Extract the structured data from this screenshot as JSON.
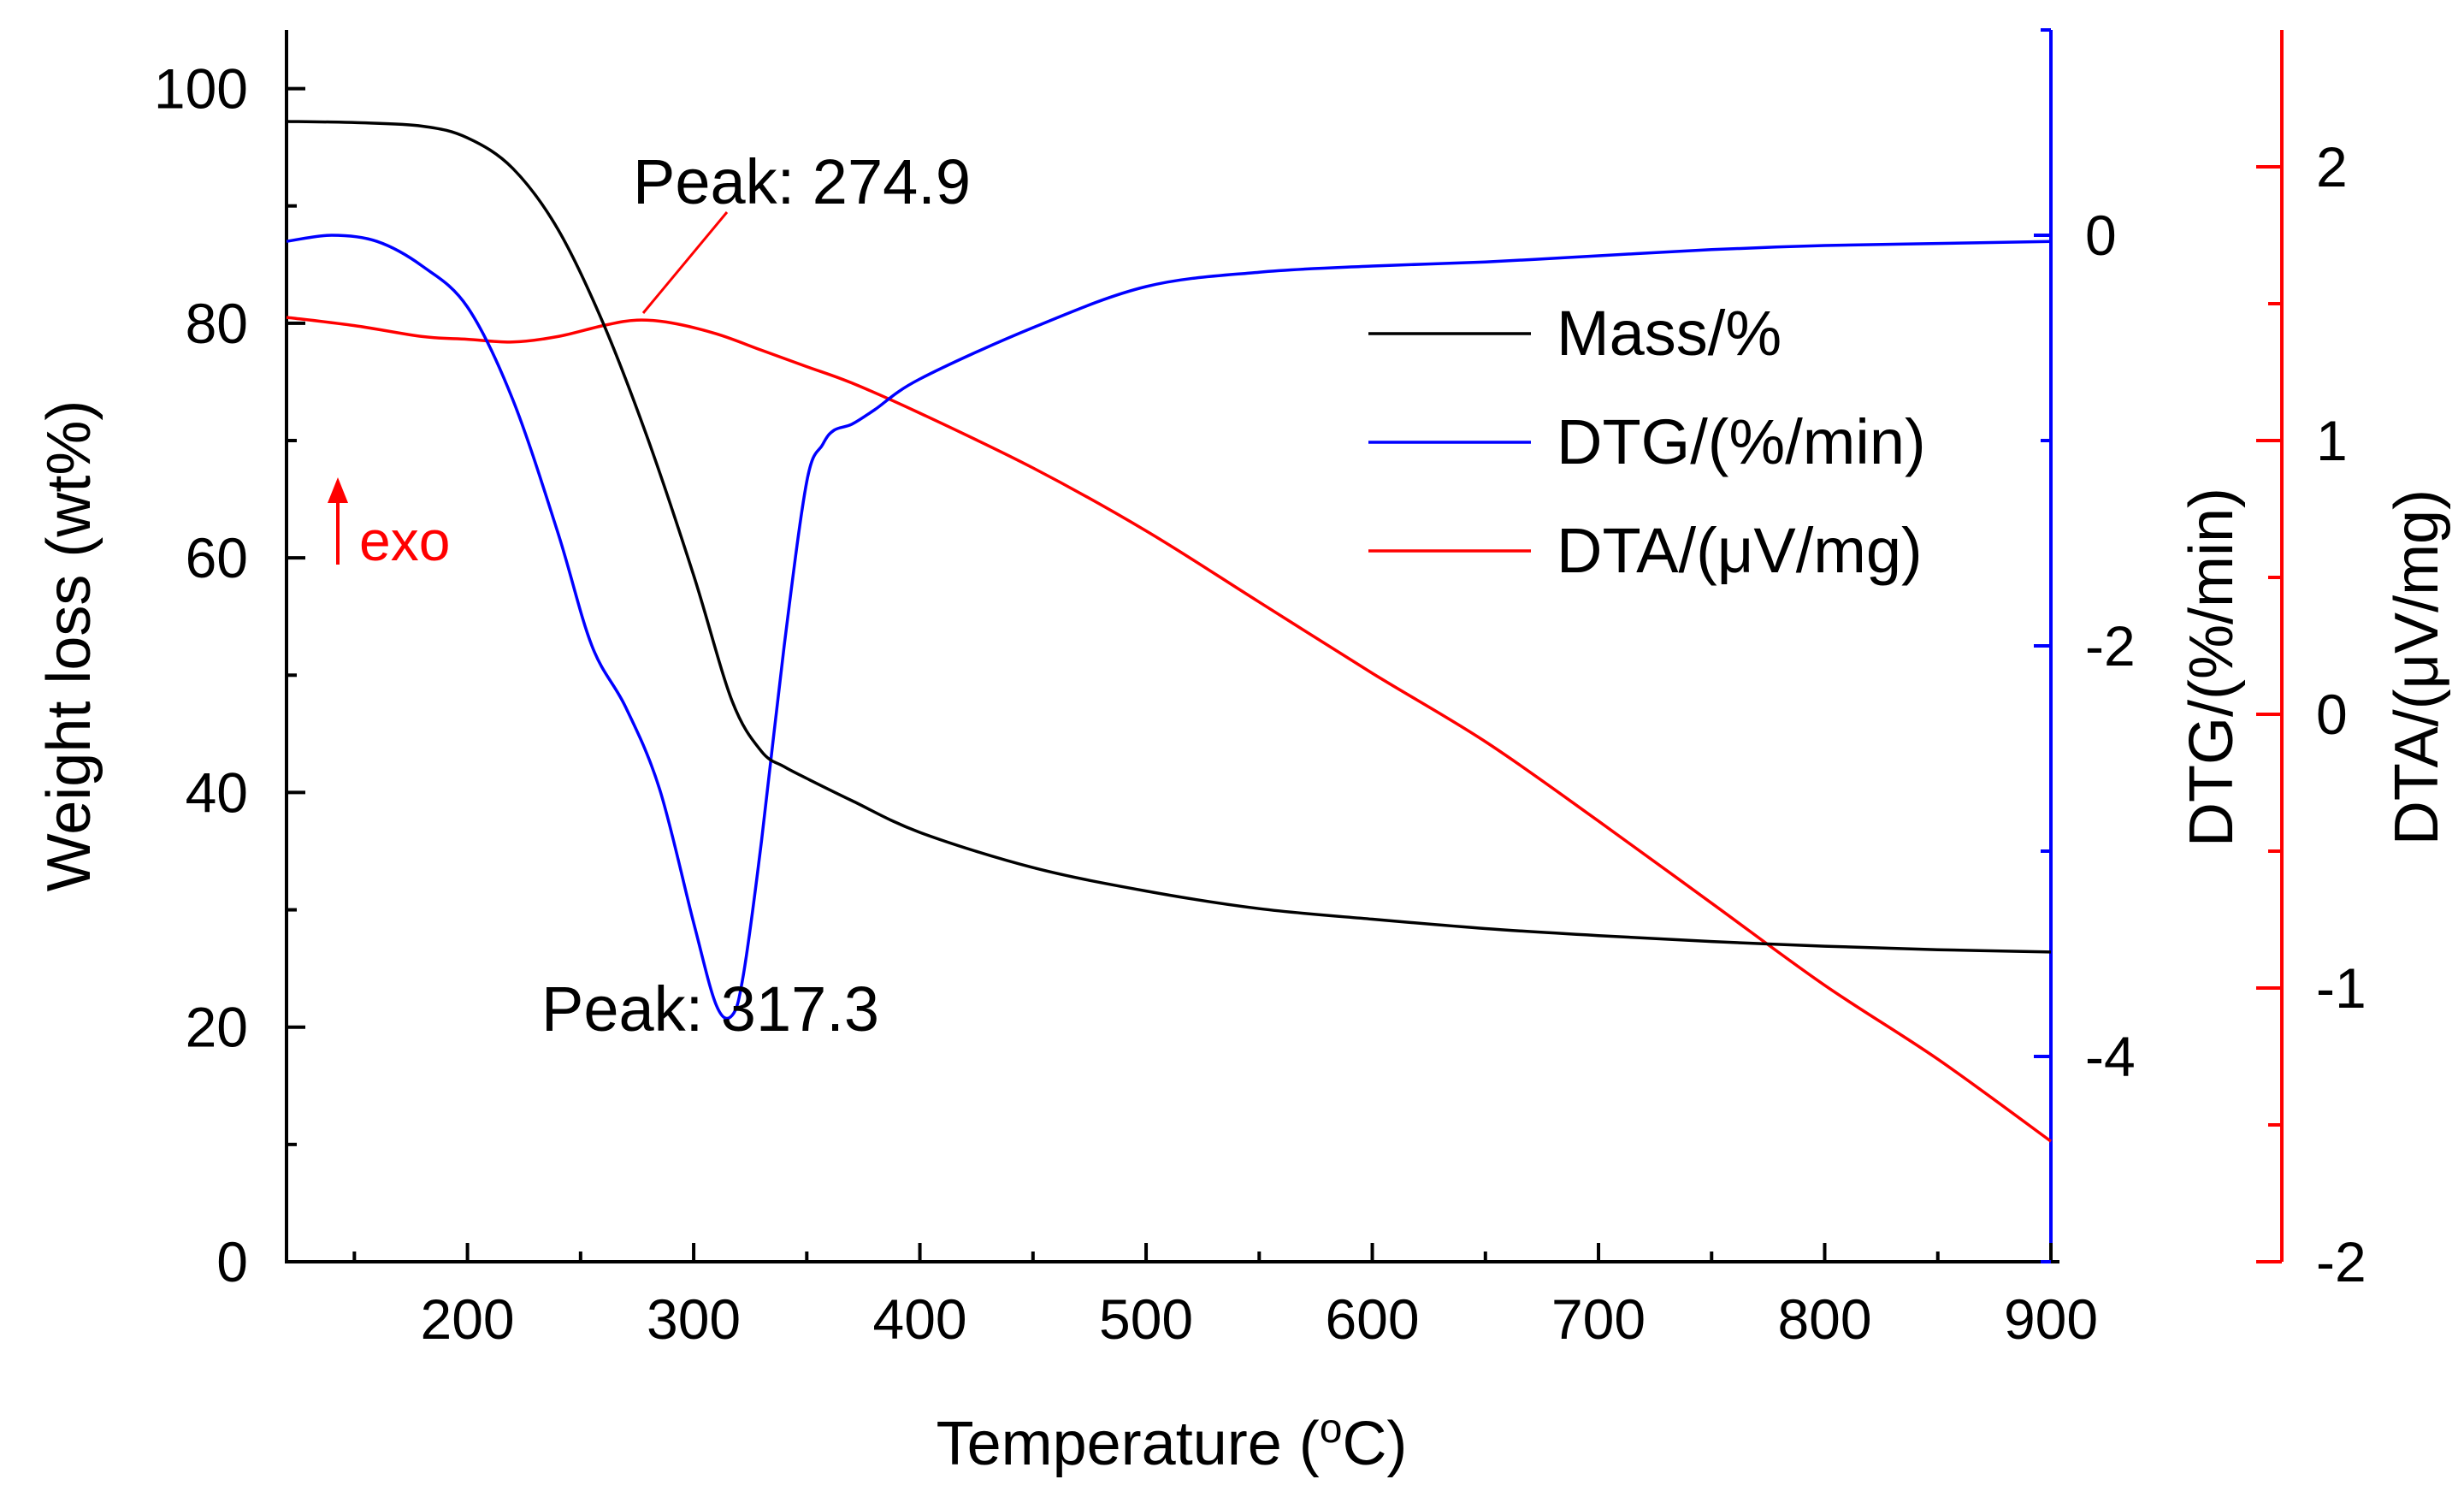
{
  "chart_data": {
    "type": "line",
    "colors": {
      "mass": "#000000",
      "dtg": "#0000ff",
      "dta": "#ff0000"
    },
    "xaxis": {
      "label": "Temperature (",
      "label_sup": "o",
      "label_end": "C)",
      "range": [
        120,
        900
      ],
      "ticks": [
        200,
        300,
        400,
        500,
        600,
        700,
        800,
        900
      ],
      "tick_labels": [
        "200",
        "300",
        "400",
        "500",
        "600",
        "700",
        "800",
        "900"
      ]
    },
    "y_left": {
      "label": "Weight loss (wt%)",
      "range": [
        0,
        105
      ],
      "ticks": [
        0,
        20,
        40,
        60,
        80,
        100
      ],
      "tick_labels": [
        "0",
        "20",
        "40",
        "60",
        "80",
        "100"
      ]
    },
    "y_dtg": {
      "label": "DTG/(%/min)",
      "range": [
        -5,
        1
      ],
      "ticks": [
        -4,
        -2,
        0
      ],
      "tick_labels": [
        "-4",
        "-2",
        "0"
      ]
    },
    "y_dta": {
      "label": "DTA/(μV/mg)",
      "range": [
        -2,
        2.5
      ],
      "ticks": [
        -2,
        -1,
        0,
        1,
        2
      ],
      "tick_labels": [
        "-2",
        "-1",
        "0",
        "1",
        "2"
      ]
    },
    "series": [
      {
        "name": "Mass/%",
        "axis": "left",
        "x": [
          120,
          150,
          180,
          200,
          220,
          240,
          260,
          280,
          300,
          317,
          330,
          340,
          350,
          370,
          400,
          450,
          500,
          550,
          600,
          650,
          700,
          750,
          800,
          850,
          900
        ],
        "y": [
          97.2,
          97.1,
          96.8,
          95.8,
          93.2,
          88.0,
          80.0,
          70.0,
          58.5,
          47.8,
          43.5,
          42.2,
          41.2,
          39.3,
          36.6,
          33.6,
          31.6,
          30.1,
          29.2,
          28.4,
          27.8,
          27.3,
          26.9,
          26.6,
          26.4
        ]
      },
      {
        "name": "DTG/(%/min)",
        "axis": "dtg",
        "x": [
          120,
          140,
          160,
          180,
          200,
          220,
          240,
          255,
          270,
          285,
          300,
          310,
          317,
          322,
          330,
          340,
          350,
          357,
          362,
          370,
          380,
          400,
          450,
          500,
          550,
          600,
          650,
          700,
          750,
          800,
          850,
          900
        ],
        "y": [
          -0.03,
          0.0,
          -0.03,
          -0.15,
          -0.35,
          -0.8,
          -1.45,
          -2.0,
          -2.3,
          -2.7,
          -3.35,
          -3.75,
          -3.8,
          -3.6,
          -2.95,
          -2.0,
          -1.2,
          -1.02,
          -0.95,
          -0.92,
          -0.85,
          -0.7,
          -0.45,
          -0.25,
          -0.18,
          -0.15,
          -0.13,
          -0.1,
          -0.07,
          -0.05,
          -0.04,
          -0.03
        ]
      },
      {
        "name": "DTA/(μV/mg)",
        "axis": "dta",
        "x": [
          120,
          150,
          180,
          200,
          220,
          240,
          260,
          274.9,
          290,
          310,
          330,
          350,
          370,
          400,
          450,
          500,
          550,
          600,
          650,
          700,
          750,
          800,
          850,
          900
        ],
        "y": [
          1.45,
          1.42,
          1.38,
          1.37,
          1.36,
          1.38,
          1.42,
          1.44,
          1.43,
          1.39,
          1.33,
          1.27,
          1.21,
          1.1,
          0.9,
          0.67,
          0.41,
          0.15,
          -0.1,
          -0.39,
          -0.69,
          -0.99,
          -1.26,
          -1.56
        ]
      }
    ],
    "annotations": [
      {
        "text": "Peak: 274.9",
        "series": "DTA/(μV/mg)",
        "x": 274.9,
        "y": 1.44
      },
      {
        "text": "Peak: 317.3",
        "series": "DTG/(%/min)",
        "x": 317.3,
        "y": -3.8
      }
    ],
    "exo_label": "exo",
    "legend": {
      "position": "center-right",
      "entries": [
        "Mass/%",
        "DTG/(%/min)",
        "DTA/(μV/mg)"
      ]
    }
  }
}
